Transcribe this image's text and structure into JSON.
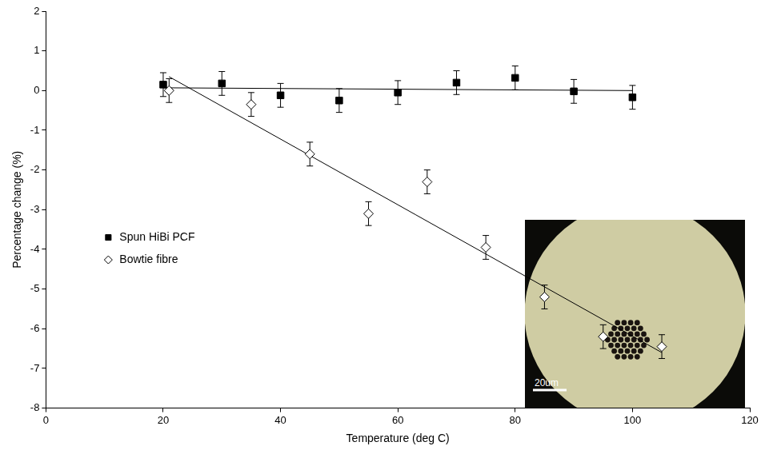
{
  "chart_data": {
    "type": "scatter",
    "x_label": "Temperature (deg C)",
    "y_label": "Percentage change (%)",
    "xlim": [
      0,
      120
    ],
    "xticks": [
      0,
      20,
      40,
      60,
      80,
      100,
      120
    ],
    "ylim": [
      -8,
      2
    ],
    "yticks": [
      -8,
      -7,
      -6,
      -5,
      -4,
      -3,
      -2,
      -1,
      0,
      1,
      2
    ],
    "grid": false,
    "legend": "left",
    "series": [
      {
        "name": "Spun HiBi PCF",
        "color": "#000000",
        "marker": "square",
        "x": [
          20,
          30,
          40,
          50,
          60,
          70,
          80,
          90,
          100
        ],
        "values": [
          0.15,
          0.18,
          -0.12,
          -0.25,
          -0.05,
          0.2,
          0.32,
          -0.02,
          -0.17
        ],
        "errors": [
          0.3,
          0.3,
          0.3,
          0.3,
          0.3,
          0.3,
          0.3,
          0.3,
          0.3
        ],
        "fit": {
          "x": [
            20,
            100
          ],
          "values": [
            0.07,
            0.0
          ]
        }
      },
      {
        "name": "Bowtie fibre",
        "color": "#000000",
        "marker": "diamond_open",
        "x": [
          21,
          35,
          45,
          55,
          65,
          75,
          85,
          95,
          105
        ],
        "values": [
          0.0,
          -0.35,
          -1.6,
          -3.1,
          -2.3,
          -3.95,
          -5.2,
          -6.2,
          -6.45
        ],
        "errors": [
          0.3,
          0.3,
          0.3,
          0.3,
          0.3,
          0.3,
          0.3,
          0.3,
          0.3
        ],
        "fit": {
          "x": [
            21,
            105
          ],
          "values": [
            0.35,
            -6.6
          ]
        }
      }
    ],
    "inset": {
      "scale_bar_label": "20um"
    }
  }
}
